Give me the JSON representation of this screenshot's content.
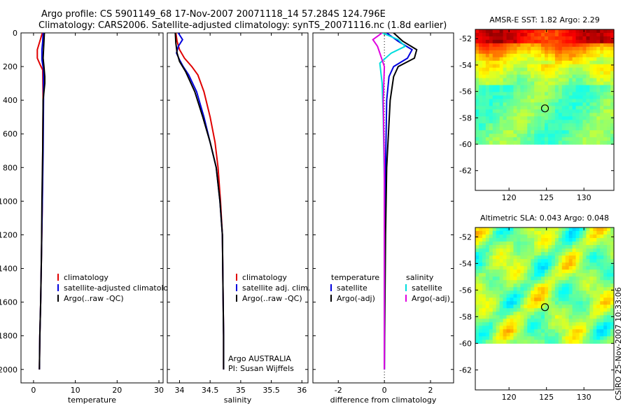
{
  "header": {
    "line1": "Argo profile: CS 5901149_68 17-Nov-2007 20071118_14 57.284S 124.796E",
    "line2": "Climatology: CARS2006. Satellite-adjusted climatology: synTS_20071116.nc (1.8d earlier)"
  },
  "side_label": "CSIRO 25-Nov-2007 10:33:06",
  "colors": {
    "climatology": "#e00000",
    "satellite": "#0000dd",
    "argo": "#000000",
    "salinity_satellite": "#00dddd",
    "salinity_argo": "#e000e0"
  },
  "chart_data": [
    {
      "type": "line",
      "xlabel": "temperature",
      "ylabel": "",
      "xlim": [
        -3,
        31
      ],
      "ylim": [
        2080,
        0
      ],
      "xticks": [
        0,
        10,
        20,
        30
      ],
      "yticks": [
        0,
        200,
        400,
        600,
        800,
        1000,
        1200,
        1400,
        1600,
        1800,
        2000
      ],
      "legend": {
        "placement": "lower-right",
        "entries": [
          "climatology",
          "satellite-adjusted climatology",
          "Argo(..raw -QC)"
        ]
      },
      "series": [
        {
          "name": "climatology",
          "color_key": "climatology",
          "points": [
            [
              2.1,
              0
            ],
            [
              1.5,
              50
            ],
            [
              0.9,
              100
            ],
            [
              0.9,
              150
            ],
            [
              1.6,
              190
            ],
            [
              2.2,
              220
            ],
            [
              2.3,
              400
            ],
            [
              2.2,
              700
            ],
            [
              2.1,
              1000
            ],
            [
              1.9,
              1300
            ],
            [
              1.7,
              1600
            ],
            [
              1.5,
              1800
            ],
            [
              1.4,
              2000
            ]
          ]
        },
        {
          "name": "satellite-adjusted climatology",
          "color_key": "satellite",
          "points": [
            [
              2.3,
              0
            ],
            [
              2.2,
              50
            ],
            [
              2.0,
              100
            ],
            [
              2.0,
              160
            ],
            [
              2.4,
              220
            ],
            [
              2.4,
              400
            ],
            [
              2.3,
              700
            ],
            [
              2.1,
              1000
            ],
            [
              1.9,
              1300
            ],
            [
              1.7,
              1600
            ],
            [
              1.5,
              1800
            ],
            [
              1.4,
              2000
            ]
          ]
        },
        {
          "name": "Argo(..raw -QC)",
          "color_key": "argo",
          "points": [
            [
              2.6,
              0
            ],
            [
              2.5,
              50
            ],
            [
              2.4,
              100
            ],
            [
              2.3,
              150
            ],
            [
              2.5,
              200
            ],
            [
              2.7,
              260
            ],
            [
              2.7,
              300
            ],
            [
              2.5,
              350
            ],
            [
              2.3,
              400
            ],
            [
              2.2,
              700
            ],
            [
              2.0,
              1000
            ],
            [
              1.9,
              1300
            ],
            [
              1.7,
              1600
            ],
            [
              1.5,
              1800
            ],
            [
              1.4,
              2000
            ]
          ]
        }
      ]
    },
    {
      "type": "line",
      "xlabel": "salinity",
      "ylabel": "",
      "xlim": [
        33.8,
        36.1
      ],
      "ylim": [
        2080,
        0
      ],
      "xticks": [
        34,
        34.5,
        35,
        35.5,
        36
      ],
      "yticks": [
        0,
        200,
        400,
        600,
        800,
        1000,
        1200,
        1400,
        1600,
        1800,
        2000
      ],
      "legend": {
        "placement": "lower-right",
        "entries": [
          "climatology",
          "satellite adj. clim.",
          "Argo(..raw -QC)"
        ]
      },
      "annotation": [
        "Argo AUSTRALIA",
        "PI: Susan Wijffels"
      ],
      "series": [
        {
          "name": "climatology",
          "color_key": "climatology",
          "points": [
            [
              33.94,
              0
            ],
            [
              33.96,
              50
            ],
            [
              34.0,
              100
            ],
            [
              34.08,
              150
            ],
            [
              34.2,
              200
            ],
            [
              34.3,
              250
            ],
            [
              34.4,
              350
            ],
            [
              34.5,
              500
            ],
            [
              34.58,
              650
            ],
            [
              34.63,
              800
            ],
            [
              34.67,
              1000
            ],
            [
              34.7,
              1200
            ],
            [
              34.71,
              1500
            ],
            [
              34.72,
              1800
            ],
            [
              34.72,
              2000
            ]
          ]
        },
        {
          "name": "satellite adj. clim.",
          "color_key": "satellite",
          "points": [
            [
              33.98,
              0
            ],
            [
              34.05,
              40
            ],
            [
              33.98,
              80
            ],
            [
              33.95,
              120
            ],
            [
              34.0,
              160
            ],
            [
              34.06,
              200
            ],
            [
              34.15,
              250
            ],
            [
              34.28,
              350
            ],
            [
              34.4,
              500
            ],
            [
              34.5,
              650
            ],
            [
              34.6,
              800
            ],
            [
              34.66,
              1000
            ],
            [
              34.7,
              1200
            ],
            [
              34.71,
              1500
            ],
            [
              34.72,
              1800
            ],
            [
              34.72,
              2000
            ]
          ]
        },
        {
          "name": "Argo(..raw -QC)",
          "color_key": "argo",
          "points": [
            [
              33.93,
              0
            ],
            [
              33.94,
              60
            ],
            [
              33.96,
              120
            ],
            [
              34.0,
              170
            ],
            [
              34.1,
              230
            ],
            [
              34.25,
              350
            ],
            [
              34.38,
              500
            ],
            [
              34.5,
              650
            ],
            [
              34.6,
              800
            ],
            [
              34.66,
              1000
            ],
            [
              34.7,
              1200
            ],
            [
              34.71,
              1500
            ],
            [
              34.72,
              1800
            ],
            [
              34.72,
              2000
            ]
          ]
        }
      ]
    },
    {
      "type": "line",
      "xlabel": "difference from climatology",
      "ylabel": "",
      "xlim": [
        -3.1,
        3.0
      ],
      "ylim": [
        2080,
        0
      ],
      "xticks": [
        -2,
        0,
        2
      ],
      "yticks": [
        0,
        200,
        400,
        600,
        800,
        1000,
        1200,
        1400,
        1600,
        1800,
        2000
      ],
      "legend": {
        "placement": "lower-right",
        "columns": [
          {
            "heading": "temperature",
            "entries": [
              "satellite",
              "Argo(-adj)"
            ]
          },
          {
            "heading": "salinity",
            "entries": [
              "satellite",
              "Argo(-adj)"
            ]
          }
        ]
      },
      "series": [
        {
          "name": "temperature satellite",
          "color_key": "satellite",
          "points": [
            [
              0.1,
              0
            ],
            [
              0.6,
              50
            ],
            [
              1.2,
              100
            ],
            [
              1.0,
              150
            ],
            [
              0.4,
              200
            ],
            [
              0.2,
              260
            ],
            [
              0.1,
              400
            ],
            [
              0.05,
              800
            ],
            [
              0.0,
              1200
            ],
            [
              0.0,
              2000
            ]
          ]
        },
        {
          "name": "temperature Argo(-adj)",
          "color_key": "argo",
          "points": [
            [
              0.4,
              0
            ],
            [
              0.8,
              50
            ],
            [
              1.4,
              100
            ],
            [
              1.3,
              150
            ],
            [
              0.6,
              200
            ],
            [
              0.4,
              260
            ],
            [
              0.25,
              400
            ],
            [
              0.1,
              800
            ],
            [
              0.05,
              1200
            ],
            [
              0.0,
              2000
            ]
          ]
        },
        {
          "name": "salinity satellite",
          "color_key": "salinity_satellite",
          "points": [
            [
              -0.1,
              0
            ],
            [
              0.6,
              40
            ],
            [
              0.9,
              80
            ],
            [
              0.3,
              120
            ],
            [
              -0.2,
              180
            ],
            [
              -0.1,
              300
            ],
            [
              -0.05,
              500
            ],
            [
              0.0,
              900
            ],
            [
              0.0,
              2000
            ]
          ]
        },
        {
          "name": "salinity Argo(-adj)",
          "color_key": "salinity_argo",
          "points": [
            [
              -0.1,
              0
            ],
            [
              -0.5,
              40
            ],
            [
              -0.3,
              80
            ],
            [
              -0.2,
              120
            ],
            [
              0.0,
              200
            ],
            [
              -0.05,
              400
            ],
            [
              0.0,
              800
            ],
            [
              0.0,
              2000
            ]
          ]
        }
      ]
    },
    {
      "type": "heatmap",
      "title": "AMSR-E SST: 1.82 Argo: 2.29",
      "xlim": [
        115.5,
        134
      ],
      "ylim": [
        -63.5,
        -51.3
      ],
      "xticks": [
        120,
        125,
        130
      ],
      "yticks": [
        -52,
        -54,
        -56,
        -58,
        -60,
        -62
      ],
      "data_extent_lat": [
        -60,
        -51.3
      ],
      "marker": {
        "lon": 124.796,
        "lat": -57.284
      },
      "palette": "jet"
    },
    {
      "type": "heatmap",
      "title": "Altimetric SLA: 0.043 Argo: 0.048",
      "xlim": [
        115.5,
        134
      ],
      "ylim": [
        -63.5,
        -51.3
      ],
      "xticks": [
        120,
        125,
        130
      ],
      "yticks": [
        -52,
        -54,
        -56,
        -58,
        -60,
        -62
      ],
      "data_extent_lat": [
        -60,
        -51.3
      ],
      "marker": {
        "lon": 124.796,
        "lat": -57.284
      },
      "palette": "jet"
    }
  ]
}
